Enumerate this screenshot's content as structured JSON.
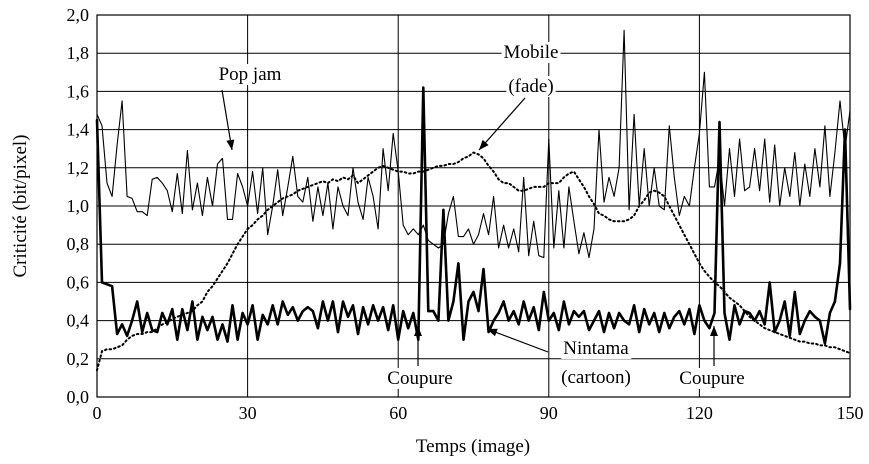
{
  "chart_data": {
    "type": "line",
    "title": "",
    "xlabel": "Temps (image)",
    "ylabel": "Criticité (bit/pixel)",
    "xlim": [
      0,
      150
    ],
    "ylim": [
      0,
      2.0
    ],
    "xticks": [
      0,
      30,
      60,
      90,
      120,
      150
    ],
    "xtick_labels": [
      "0",
      "30",
      "60",
      "90",
      "120",
      "150"
    ],
    "yticks": [
      0,
      0.2,
      0.4,
      0.6,
      0.8,
      1.0,
      1.2,
      1.4,
      1.6,
      1.8,
      2.0
    ],
    "ytick_labels": [
      "0,0",
      "0,2",
      "0,4",
      "0,6",
      "0,8",
      "1,0",
      "1,2",
      "1,4",
      "1,6",
      "1,8",
      "2,0"
    ],
    "grid": true,
    "series": [
      {
        "name": "Pop jam",
        "style": "thin-solid",
        "color": "#000000",
        "x": [
          0,
          1,
          2,
          3,
          4,
          5,
          6,
          7,
          8,
          9,
          10,
          11,
          12,
          13,
          14,
          15,
          16,
          17,
          18,
          19,
          20,
          21,
          22,
          23,
          24,
          25,
          26,
          27,
          28,
          29,
          30,
          31,
          32,
          33,
          34,
          35,
          36,
          37,
          38,
          39,
          40,
          41,
          42,
          43,
          44,
          45,
          46,
          47,
          48,
          49,
          50,
          51,
          52,
          53,
          54,
          55,
          56,
          57,
          58,
          59,
          60,
          61,
          62,
          63,
          64,
          65,
          66,
          67,
          68,
          69,
          70,
          71,
          72,
          73,
          74,
          75,
          76,
          77,
          78,
          79,
          80,
          81,
          82,
          83,
          84,
          85,
          86,
          87,
          88,
          89,
          90,
          91,
          92,
          93,
          94,
          95,
          96,
          97,
          98,
          99,
          100,
          101,
          102,
          103,
          104,
          105,
          106,
          107,
          108,
          109,
          110,
          111,
          112,
          113,
          114,
          115,
          116,
          117,
          118,
          119,
          120,
          121,
          122,
          123,
          124,
          125,
          126,
          127,
          128,
          129,
          130,
          131,
          132,
          133,
          134,
          135,
          136,
          137,
          138,
          139,
          140,
          141,
          142,
          143,
          144,
          145,
          146,
          147,
          148,
          149,
          150
        ],
        "values": [
          1.48,
          1.42,
          1.12,
          1.05,
          1.32,
          1.55,
          1.05,
          1.04,
          0.97,
          0.97,
          0.95,
          1.14,
          1.15,
          1.12,
          1.08,
          0.97,
          1.17,
          0.96,
          1.29,
          0.98,
          1.12,
          0.95,
          1.15,
          1.0,
          1.22,
          1.25,
          0.93,
          0.93,
          1.17,
          1.1,
          1.0,
          1.18,
          0.96,
          1.2,
          0.85,
          1.0,
          1.19,
          0.95,
          1.1,
          1.26,
          1.05,
          1.02,
          1.15,
          0.92,
          1.1,
          0.95,
          1.12,
          0.88,
          1.1,
          1.0,
          0.95,
          1.2,
          1.02,
          0.93,
          1.15,
          1.05,
          0.88,
          1.3,
          1.08,
          1.38,
          1.18,
          0.9,
          0.85,
          0.88,
          0.85,
          0.9,
          0.82,
          0.8,
          0.78,
          0.8,
          0.96,
          1.05,
          0.84,
          0.84,
          0.88,
          0.8,
          0.85,
          0.96,
          0.85,
          1.05,
          0.78,
          0.9,
          0.78,
          0.88,
          0.76,
          1.15,
          0.74,
          0.92,
          0.74,
          0.73,
          1.35,
          0.78,
          1.08,
          0.78,
          1.1,
          0.92,
          0.75,
          0.86,
          0.73,
          0.88,
          1.4,
          1.02,
          1.15,
          1.05,
          1.2,
          1.92,
          0.98,
          1.48,
          1.0,
          1.3,
          1.0,
          1.2,
          1.0,
          0.98,
          1.42,
          1.15,
          0.95,
          1.05,
          1.0,
          1.2,
          1.38,
          1.7,
          1.1,
          1.1,
          1.25,
          1.0,
          1.3,
          1.05,
          1.35,
          1.08,
          1.1,
          1.3,
          1.08,
          1.35,
          1.02,
          1.32,
          1.0,
          1.2,
          1.05,
          1.28,
          1.0,
          1.22,
          1.05,
          1.3,
          1.1,
          1.42,
          1.05,
          1.28,
          1.55,
          1.3,
          1.5
        ]
      },
      {
        "name": "Mobile (fade)",
        "style": "dotted",
        "color": "#000000",
        "x": [
          0,
          1,
          2,
          3,
          4,
          5,
          6,
          7,
          8,
          9,
          10,
          11,
          12,
          13,
          14,
          15,
          16,
          17,
          18,
          19,
          20,
          21,
          22,
          23,
          24,
          25,
          26,
          27,
          28,
          29,
          30,
          31,
          32,
          33,
          34,
          35,
          36,
          37,
          38,
          39,
          40,
          41,
          42,
          43,
          44,
          45,
          46,
          47,
          48,
          49,
          50,
          51,
          52,
          53,
          54,
          55,
          56,
          57,
          58,
          59,
          60,
          61,
          62,
          63,
          64,
          65,
          66,
          67,
          68,
          69,
          70,
          71,
          72,
          73,
          74,
          75,
          76,
          77,
          78,
          79,
          80,
          81,
          82,
          83,
          84,
          85,
          86,
          87,
          88,
          89,
          90,
          91,
          92,
          93,
          94,
          95,
          96,
          97,
          98,
          99,
          100,
          101,
          102,
          103,
          104,
          105,
          106,
          107,
          108,
          109,
          110,
          111,
          112,
          113,
          114,
          115,
          116,
          117,
          118,
          119,
          120,
          121,
          122,
          123,
          124,
          125,
          126,
          127,
          128,
          129,
          130,
          131,
          132,
          133,
          134,
          135,
          136,
          137,
          138,
          139,
          140,
          141,
          142,
          143,
          144,
          145,
          146,
          147,
          148,
          149,
          150
        ],
        "values": [
          0.14,
          0.24,
          0.25,
          0.25,
          0.26,
          0.27,
          0.3,
          0.32,
          0.33,
          0.33,
          0.34,
          0.34,
          0.36,
          0.38,
          0.39,
          0.41,
          0.42,
          0.43,
          0.44,
          0.45,
          0.48,
          0.5,
          0.55,
          0.58,
          0.62,
          0.66,
          0.7,
          0.75,
          0.8,
          0.84,
          0.88,
          0.9,
          0.93,
          0.95,
          0.98,
          1.0,
          1.02,
          1.04,
          1.05,
          1.06,
          1.08,
          1.09,
          1.1,
          1.11,
          1.12,
          1.13,
          1.12,
          1.14,
          1.13,
          1.15,
          1.14,
          1.16,
          1.12,
          1.14,
          1.16,
          1.18,
          1.2,
          1.21,
          1.2,
          1.19,
          1.18,
          1.18,
          1.17,
          1.17,
          1.18,
          1.18,
          1.19,
          1.2,
          1.21,
          1.21,
          1.22,
          1.22,
          1.23,
          1.25,
          1.26,
          1.28,
          1.27,
          1.25,
          1.21,
          1.18,
          1.14,
          1.12,
          1.12,
          1.1,
          1.08,
          1.08,
          1.09,
          1.1,
          1.1,
          1.1,
          1.12,
          1.12,
          1.12,
          1.15,
          1.17,
          1.18,
          1.14,
          1.1,
          1.05,
          1.01,
          0.96,
          0.95,
          0.93,
          0.92,
          0.92,
          0.92,
          0.93,
          0.95,
          1.0,
          1.03,
          1.07,
          1.08,
          1.07,
          1.05,
          1.0,
          0.95,
          0.9,
          0.85,
          0.8,
          0.75,
          0.7,
          0.66,
          0.63,
          0.6,
          0.58,
          0.55,
          0.52,
          0.5,
          0.48,
          0.45,
          0.42,
          0.4,
          0.38,
          0.36,
          0.35,
          0.34,
          0.33,
          0.32,
          0.31,
          0.3,
          0.29,
          0.29,
          0.28,
          0.28,
          0.27,
          0.27,
          0.26,
          0.26,
          0.25,
          0.24,
          0.23
        ]
      },
      {
        "name": "Nintama (cartoon)",
        "style": "thick-solid",
        "color": "#000000",
        "x": [
          0,
          1,
          2,
          3,
          4,
          5,
          6,
          7,
          8,
          9,
          10,
          11,
          12,
          13,
          14,
          15,
          16,
          17,
          18,
          19,
          20,
          21,
          22,
          23,
          24,
          25,
          26,
          27,
          28,
          29,
          30,
          31,
          32,
          33,
          34,
          35,
          36,
          37,
          38,
          39,
          40,
          41,
          42,
          43,
          44,
          45,
          46,
          47,
          48,
          49,
          50,
          51,
          52,
          53,
          54,
          55,
          56,
          57,
          58,
          59,
          60,
          61,
          62,
          63,
          64,
          65,
          66,
          67,
          68,
          69,
          70,
          71,
          72,
          73,
          74,
          75,
          76,
          77,
          78,
          79,
          80,
          81,
          82,
          83,
          84,
          85,
          86,
          87,
          88,
          89,
          90,
          91,
          92,
          93,
          94,
          95,
          96,
          97,
          98,
          99,
          100,
          101,
          102,
          103,
          104,
          105,
          106,
          107,
          108,
          109,
          110,
          111,
          112,
          113,
          114,
          115,
          116,
          117,
          118,
          119,
          120,
          121,
          122,
          123,
          124,
          125,
          126,
          127,
          128,
          129,
          130,
          131,
          132,
          133,
          134,
          135,
          136,
          137,
          138,
          139,
          140,
          141,
          142,
          143,
          144,
          145,
          146,
          147,
          148,
          149,
          150
        ],
        "values": [
          1.45,
          0.6,
          0.59,
          0.58,
          0.33,
          0.38,
          0.32,
          0.4,
          0.5,
          0.34,
          0.44,
          0.35,
          0.34,
          0.44,
          0.38,
          0.46,
          0.3,
          0.46,
          0.35,
          0.5,
          0.3,
          0.42,
          0.35,
          0.42,
          0.3,
          0.38,
          0.29,
          0.48,
          0.3,
          0.44,
          0.38,
          0.48,
          0.3,
          0.43,
          0.38,
          0.48,
          0.38,
          0.5,
          0.43,
          0.47,
          0.4,
          0.45,
          0.47,
          0.45,
          0.36,
          0.5,
          0.4,
          0.5,
          0.34,
          0.5,
          0.42,
          0.48,
          0.33,
          0.47,
          0.38,
          0.48,
          0.4,
          0.47,
          0.35,
          0.48,
          0.3,
          0.45,
          0.36,
          0.44,
          0.3,
          1.62,
          0.45,
          0.45,
          0.4,
          0.98,
          0.4,
          0.5,
          0.7,
          0.3,
          0.5,
          0.55,
          0.45,
          0.67,
          0.34,
          0.4,
          0.44,
          0.5,
          0.4,
          0.45,
          0.38,
          0.5,
          0.4,
          0.47,
          0.35,
          0.55,
          0.4,
          0.44,
          0.35,
          0.5,
          0.38,
          0.45,
          0.42,
          0.45,
          0.35,
          0.4,
          0.45,
          0.34,
          0.44,
          0.36,
          0.44,
          0.4,
          0.38,
          0.48,
          0.34,
          0.46,
          0.38,
          0.44,
          0.34,
          0.44,
          0.36,
          0.42,
          0.45,
          0.38,
          0.46,
          0.33,
          0.48,
          0.4,
          0.36,
          0.44,
          1.44,
          0.44,
          0.3,
          0.48,
          0.38,
          0.45,
          0.44,
          0.4,
          0.45,
          0.38,
          0.6,
          0.34,
          0.4,
          0.5,
          0.32,
          0.55,
          0.33,
          0.4,
          0.45,
          0.42,
          0.4,
          0.28,
          0.44,
          0.5,
          0.7,
          1.4,
          0.46
        ]
      }
    ],
    "annotations": [
      {
        "id": "pop",
        "text": "Pop jam"
      },
      {
        "id": "mobile1",
        "text": "Mobile"
      },
      {
        "id": "mobile2",
        "text": "(fade)"
      },
      {
        "id": "coupure1",
        "text": "Coupure"
      },
      {
        "id": "nintama1",
        "text": "Nintama"
      },
      {
        "id": "nintama2",
        "text": "(cartoon)"
      },
      {
        "id": "coupure2",
        "text": "Coupure"
      }
    ]
  }
}
